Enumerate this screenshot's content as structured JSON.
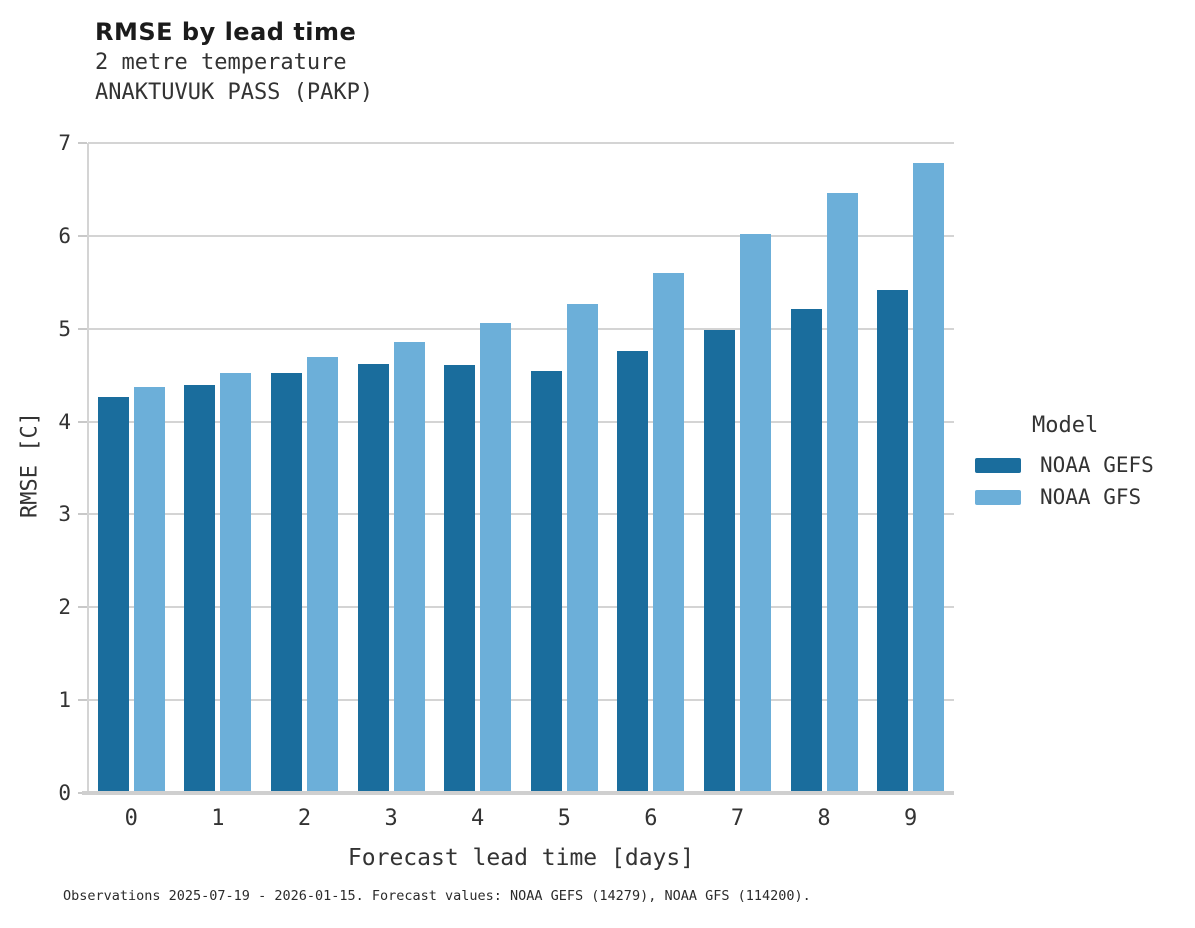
{
  "header": {
    "title": "RMSE by lead time",
    "subtitle1": "2 metre temperature",
    "subtitle2": "ANAKTUVUK PASS (PAKP)"
  },
  "chart_data": {
    "type": "bar",
    "title": "RMSE by lead time",
    "subtitle": [
      "2 metre temperature",
      "ANAKTUVUK PASS (PAKP)"
    ],
    "categories": [
      "0",
      "1",
      "2",
      "3",
      "4",
      "5",
      "6",
      "7",
      "8",
      "9"
    ],
    "series": [
      {
        "name": "NOAA GEFS",
        "color": "#1a6d9d",
        "values": [
          4.26,
          4.39,
          4.52,
          4.62,
          4.61,
          4.55,
          4.76,
          4.99,
          5.21,
          5.42
        ]
      },
      {
        "name": "NOAA GFS",
        "color": "#6cafd9",
        "values": [
          4.37,
          4.52,
          4.7,
          4.86,
          5.06,
          5.27,
          5.6,
          6.02,
          6.46,
          6.79
        ]
      }
    ],
    "xlabel": "Forecast lead time [days]",
    "ylabel": "RMSE [C]",
    "ylim": [
      0,
      7
    ],
    "yticks": [
      0,
      1,
      2,
      3,
      4,
      5,
      6,
      7
    ],
    "grid": "horizontal",
    "legend_title": "Model",
    "legend_position": "right"
  },
  "footer": {
    "caption": "Observations 2025-07-19 - 2026-01-15. Forecast values: NOAA GEFS (14279), NOAA GFS (114200)."
  },
  "colors": {
    "gridline": "#d4d4d4",
    "axis": "#c9c9c9",
    "text": "#333333",
    "title": "#1b1b1b",
    "background": "#ffffff"
  }
}
